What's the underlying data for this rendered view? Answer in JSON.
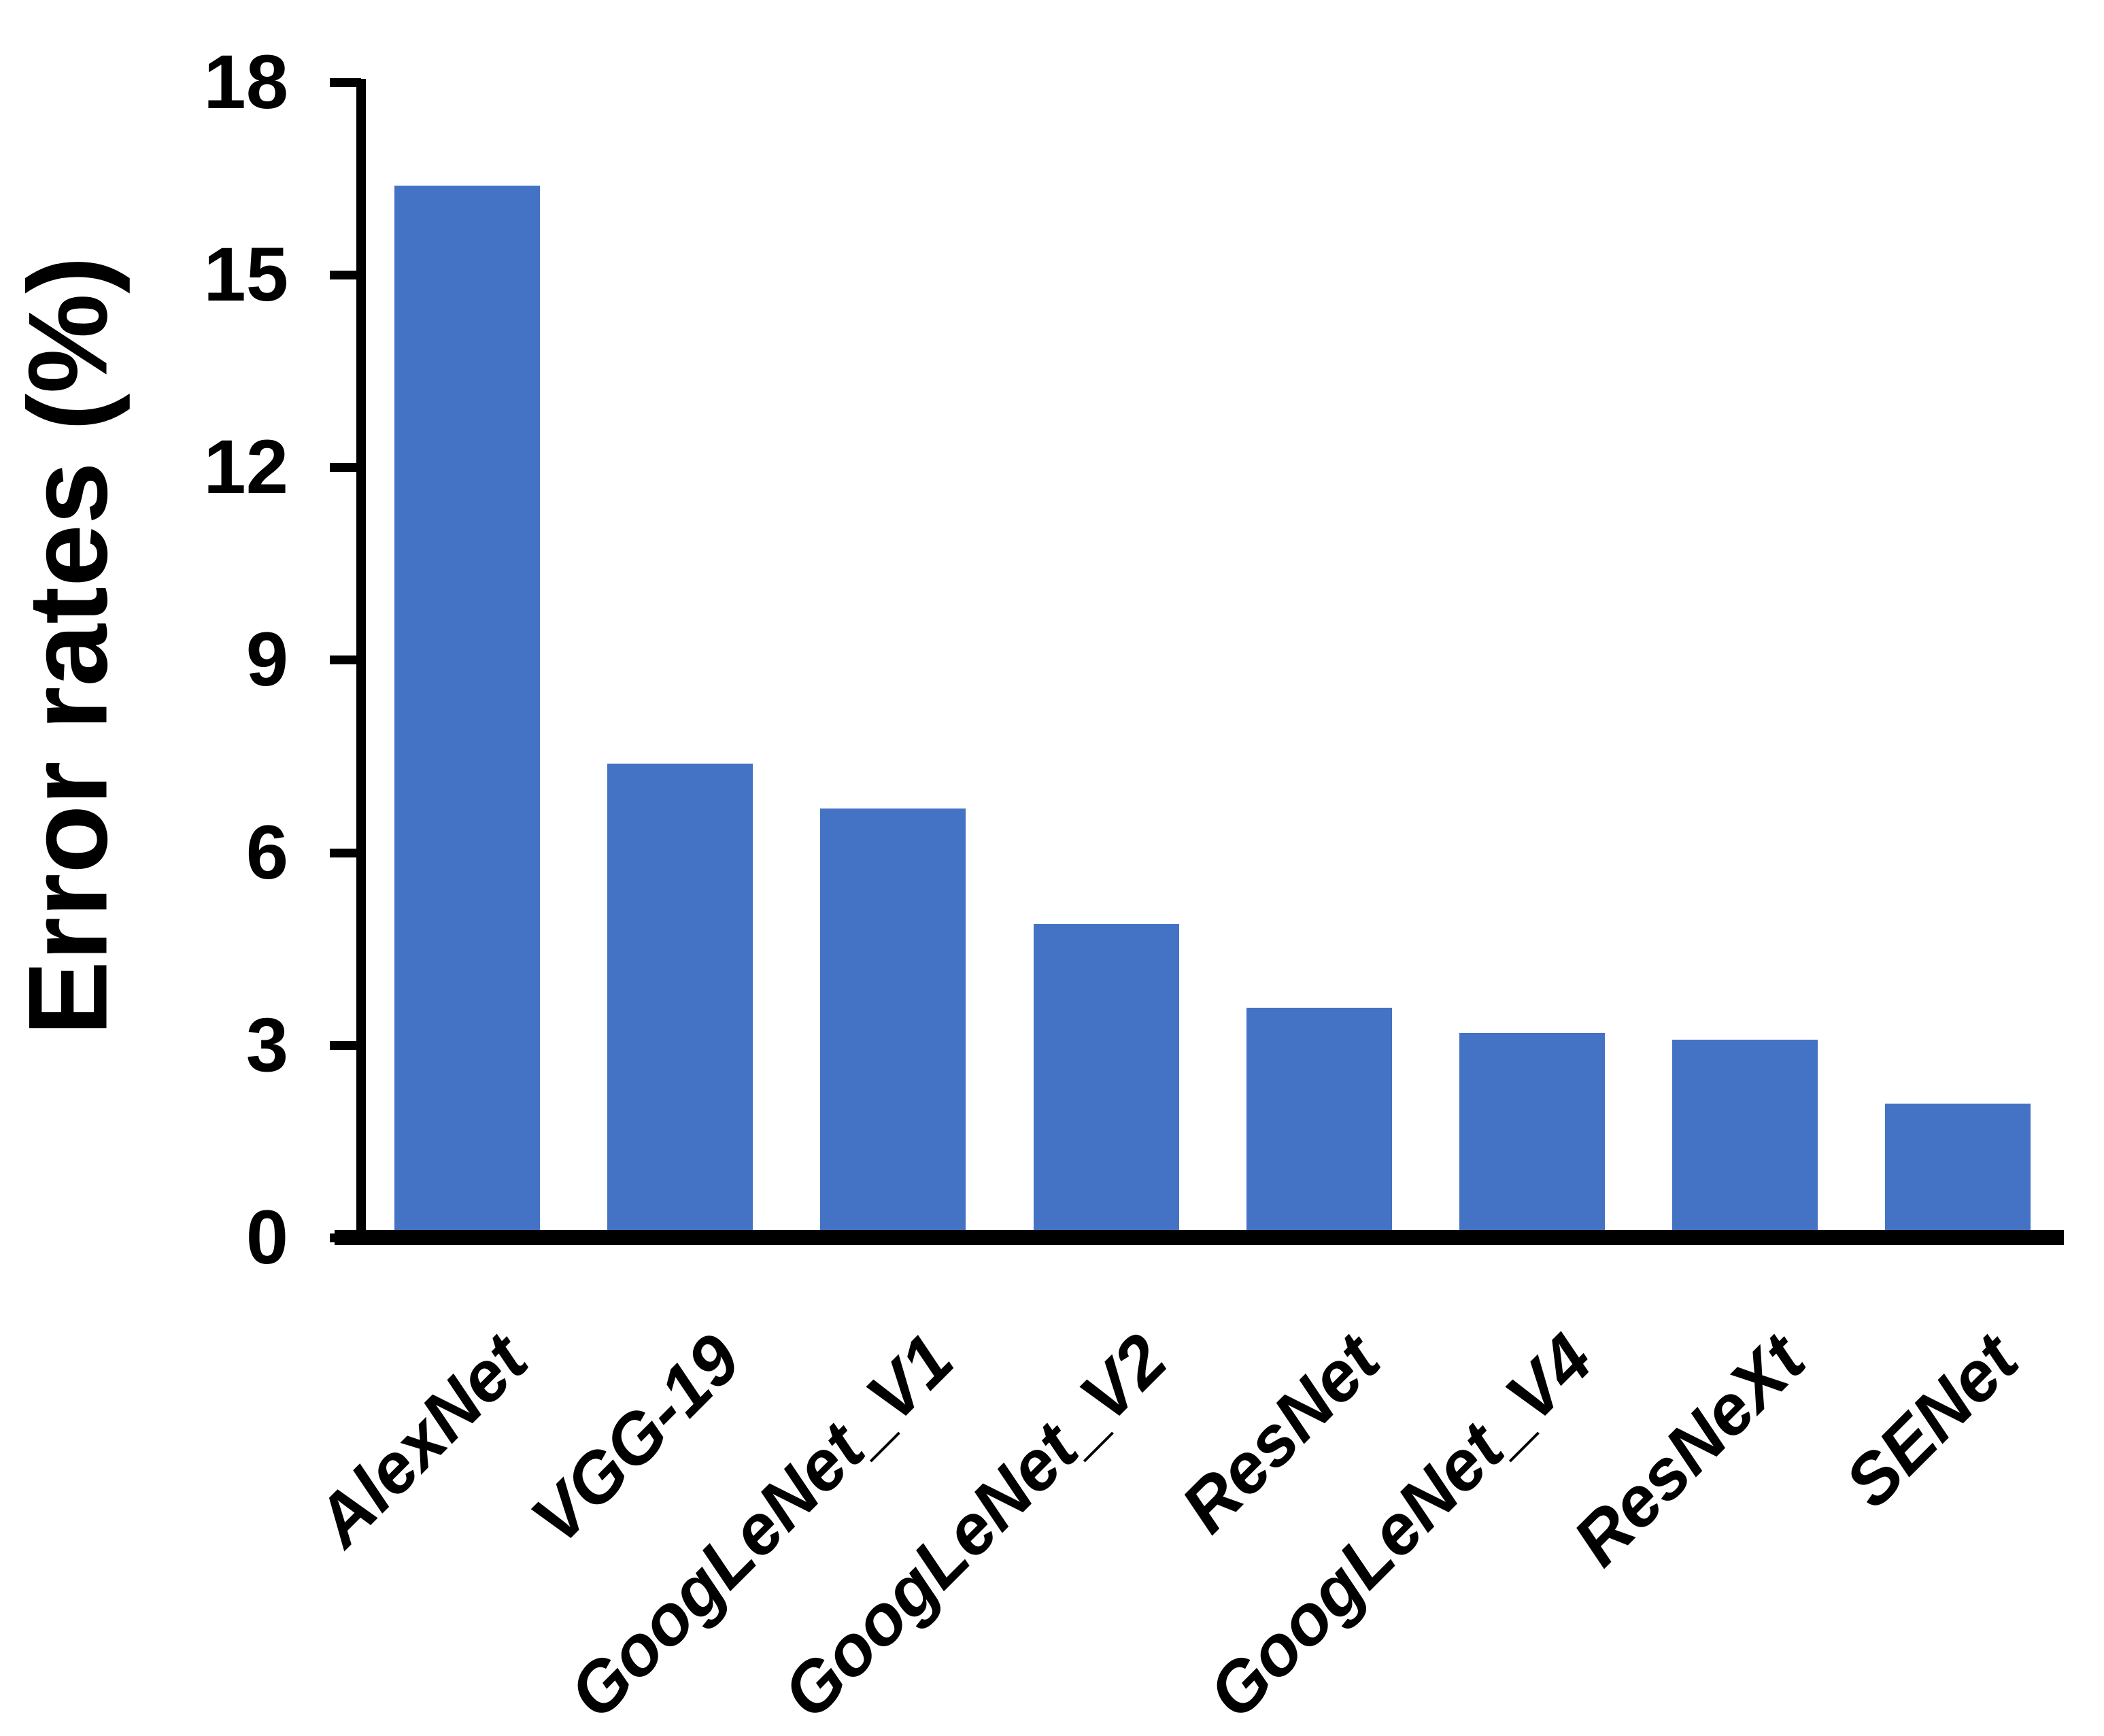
{
  "chart_data": {
    "type": "bar",
    "title": "",
    "xlabel": "",
    "ylabel": "Error rates (%)",
    "categories": [
      "AlexNet",
      "VGG-19",
      "GoogLeNet_V1",
      "GoogLeNet_V2",
      "ResNet",
      "GoogLeNet_V4",
      "ResNeXt",
      "SENet"
    ],
    "values": [
      16.5,
      7.5,
      6.8,
      5.0,
      3.7,
      3.3,
      3.2,
      2.2
    ],
    "yticks": [
      18,
      15,
      12,
      9,
      6,
      3,
      0
    ],
    "ylim": [
      0,
      18
    ],
    "bar_color": "#4472C4",
    "axis_color": "#000000",
    "grid": "off",
    "legend": "none"
  }
}
